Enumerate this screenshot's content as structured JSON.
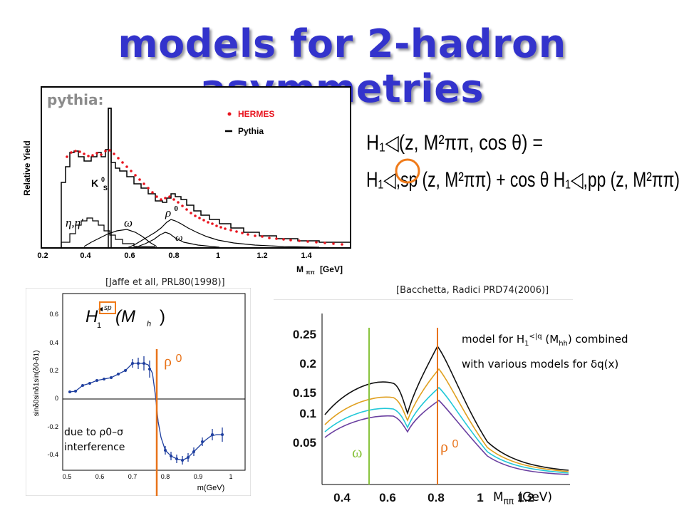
{
  "title": "models for 2-hadron asymmetries",
  "hermes_panel": {
    "pythia_label": "pythia:",
    "y_axis_label": "Relative Yield",
    "legend": [
      "HERMES",
      "Pythia"
    ],
    "x_ticks": [
      "0.2",
      "0.4",
      "0.6",
      "0.8",
      "1",
      "1.2",
      "1.4"
    ],
    "x_label": "M",
    "x_label_sub": "ππ",
    "x_unit": "[GeV]",
    "annotations": {
      "kaon": "K",
      "kaon_sup": "0",
      "kaon_sub": "S",
      "eta": "η,η′",
      "omega1": "ω",
      "rho": "ρ",
      "rho_sup": "0",
      "omega2": "ω"
    }
  },
  "formula": {
    "line1": "H₁◁(z, M²ππ, cos θ) =",
    "line2": "H₁◁,sp (z, M²ππ) + cos θ H₁◁,pp (z, M²ππ)"
  },
  "jaffe_citation": "[Jaffe et all, PRL80(1998)]",
  "jaffe_panel": {
    "y_axis_label": "sinδ0sinδ1sin(δ0-δ1)",
    "y_ticks": [
      "0.6",
      "0.4",
      "0.2",
      "0",
      "-0.2",
      "-0.4"
    ],
    "x_ticks": [
      "0.5",
      "0.6",
      "0.7",
      "0.8",
      "0.9",
      "1"
    ],
    "x_label": "m(GeV)",
    "formula_H": "H",
    "formula_sub1": "1",
    "formula_sup": "sp",
    "formula_M": "(M",
    "formula_h": "h",
    "formula_close": ")",
    "rho_label": "ρ",
    "rho_sup": "0",
    "interference_line1": "due to ρ0–σ",
    "interference_line2": "interference"
  },
  "bacchetta_citation": "[Bacchetta, Radici PRD74(2006)]",
  "bacchetta_panel": {
    "y_ticks": [
      "0.25",
      "0.2",
      "0.15",
      "0.1",
      "0.05"
    ],
    "x_ticks": [
      "0.4",
      "0.6",
      "0.8",
      "1",
      "1.2"
    ],
    "omega_label": "ω",
    "rho_label": "ρ",
    "rho_sup": "0",
    "note_line1_a": "model for H",
    "note_line1_sub": "1",
    "note_line1_sup": "<|q",
    "note_line1_b": " (M",
    "note_line1_sub2": "hh",
    "note_line1_c": ") combined",
    "note_line2": "with various models for δq(x)",
    "x_label": "M",
    "x_label_sub": "ππ",
    "x_label_unit": " (GeV)"
  },
  "colors": {
    "title": "#3333cc",
    "hermes_points": "#e8141e",
    "highlight_circle": "#f07b1a",
    "rho_line": "#e8731a",
    "omega_line": "#8ac43f"
  }
}
